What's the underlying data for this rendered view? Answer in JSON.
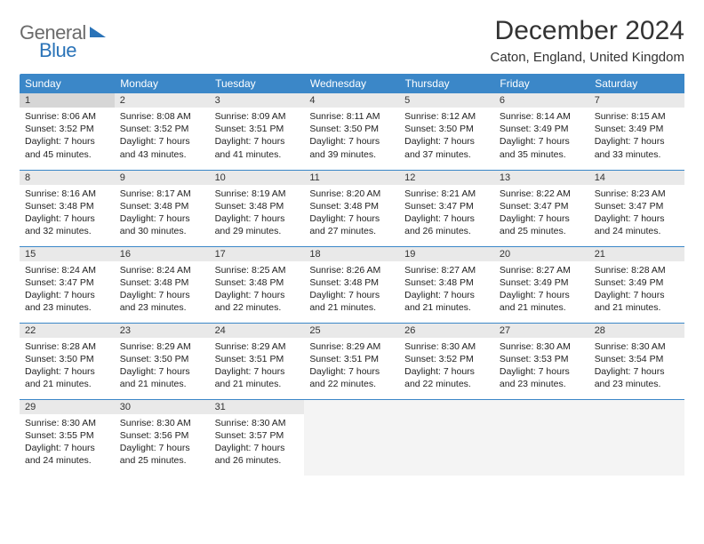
{
  "logo": {
    "text1": "General",
    "text2": "Blue"
  },
  "title": "December 2024",
  "location": "Caton, England, United Kingdom",
  "colors": {
    "header_bg": "#3b87c8",
    "header_text": "#ffffff",
    "daynum_bg": "#e9e9e9",
    "border": "#3b87c8",
    "logo_gray": "#6b6b6b",
    "logo_blue": "#2a73b8"
  },
  "weekdays": [
    "Sunday",
    "Monday",
    "Tuesday",
    "Wednesday",
    "Thursday",
    "Friday",
    "Saturday"
  ],
  "weeks": [
    [
      {
        "n": "1",
        "sr": "8:06 AM",
        "ss": "3:52 PM",
        "dl": "7 hours and 45 minutes."
      },
      {
        "n": "2",
        "sr": "8:08 AM",
        "ss": "3:52 PM",
        "dl": "7 hours and 43 minutes."
      },
      {
        "n": "3",
        "sr": "8:09 AM",
        "ss": "3:51 PM",
        "dl": "7 hours and 41 minutes."
      },
      {
        "n": "4",
        "sr": "8:11 AM",
        "ss": "3:50 PM",
        "dl": "7 hours and 39 minutes."
      },
      {
        "n": "5",
        "sr": "8:12 AM",
        "ss": "3:50 PM",
        "dl": "7 hours and 37 minutes."
      },
      {
        "n": "6",
        "sr": "8:14 AM",
        "ss": "3:49 PM",
        "dl": "7 hours and 35 minutes."
      },
      {
        "n": "7",
        "sr": "8:15 AM",
        "ss": "3:49 PM",
        "dl": "7 hours and 33 minutes."
      }
    ],
    [
      {
        "n": "8",
        "sr": "8:16 AM",
        "ss": "3:48 PM",
        "dl": "7 hours and 32 minutes."
      },
      {
        "n": "9",
        "sr": "8:17 AM",
        "ss": "3:48 PM",
        "dl": "7 hours and 30 minutes."
      },
      {
        "n": "10",
        "sr": "8:19 AM",
        "ss": "3:48 PM",
        "dl": "7 hours and 29 minutes."
      },
      {
        "n": "11",
        "sr": "8:20 AM",
        "ss": "3:48 PM",
        "dl": "7 hours and 27 minutes."
      },
      {
        "n": "12",
        "sr": "8:21 AM",
        "ss": "3:47 PM",
        "dl": "7 hours and 26 minutes."
      },
      {
        "n": "13",
        "sr": "8:22 AM",
        "ss": "3:47 PM",
        "dl": "7 hours and 25 minutes."
      },
      {
        "n": "14",
        "sr": "8:23 AM",
        "ss": "3:47 PM",
        "dl": "7 hours and 24 minutes."
      }
    ],
    [
      {
        "n": "15",
        "sr": "8:24 AM",
        "ss": "3:47 PM",
        "dl": "7 hours and 23 minutes."
      },
      {
        "n": "16",
        "sr": "8:24 AM",
        "ss": "3:48 PM",
        "dl": "7 hours and 23 minutes."
      },
      {
        "n": "17",
        "sr": "8:25 AM",
        "ss": "3:48 PM",
        "dl": "7 hours and 22 minutes."
      },
      {
        "n": "18",
        "sr": "8:26 AM",
        "ss": "3:48 PM",
        "dl": "7 hours and 21 minutes."
      },
      {
        "n": "19",
        "sr": "8:27 AM",
        "ss": "3:48 PM",
        "dl": "7 hours and 21 minutes."
      },
      {
        "n": "20",
        "sr": "8:27 AM",
        "ss": "3:49 PM",
        "dl": "7 hours and 21 minutes."
      },
      {
        "n": "21",
        "sr": "8:28 AM",
        "ss": "3:49 PM",
        "dl": "7 hours and 21 minutes."
      }
    ],
    [
      {
        "n": "22",
        "sr": "8:28 AM",
        "ss": "3:50 PM",
        "dl": "7 hours and 21 minutes."
      },
      {
        "n": "23",
        "sr": "8:29 AM",
        "ss": "3:50 PM",
        "dl": "7 hours and 21 minutes."
      },
      {
        "n": "24",
        "sr": "8:29 AM",
        "ss": "3:51 PM",
        "dl": "7 hours and 21 minutes."
      },
      {
        "n": "25",
        "sr": "8:29 AM",
        "ss": "3:51 PM",
        "dl": "7 hours and 22 minutes."
      },
      {
        "n": "26",
        "sr": "8:30 AM",
        "ss": "3:52 PM",
        "dl": "7 hours and 22 minutes."
      },
      {
        "n": "27",
        "sr": "8:30 AM",
        "ss": "3:53 PM",
        "dl": "7 hours and 23 minutes."
      },
      {
        "n": "28",
        "sr": "8:30 AM",
        "ss": "3:54 PM",
        "dl": "7 hours and 23 minutes."
      }
    ],
    [
      {
        "n": "29",
        "sr": "8:30 AM",
        "ss": "3:55 PM",
        "dl": "7 hours and 24 minutes."
      },
      {
        "n": "30",
        "sr": "8:30 AM",
        "ss": "3:56 PM",
        "dl": "7 hours and 25 minutes."
      },
      {
        "n": "31",
        "sr": "8:30 AM",
        "ss": "3:57 PM",
        "dl": "7 hours and 26 minutes."
      },
      null,
      null,
      null,
      null
    ]
  ],
  "labels": {
    "sunrise": "Sunrise:",
    "sunset": "Sunset:",
    "daylight": "Daylight:"
  }
}
